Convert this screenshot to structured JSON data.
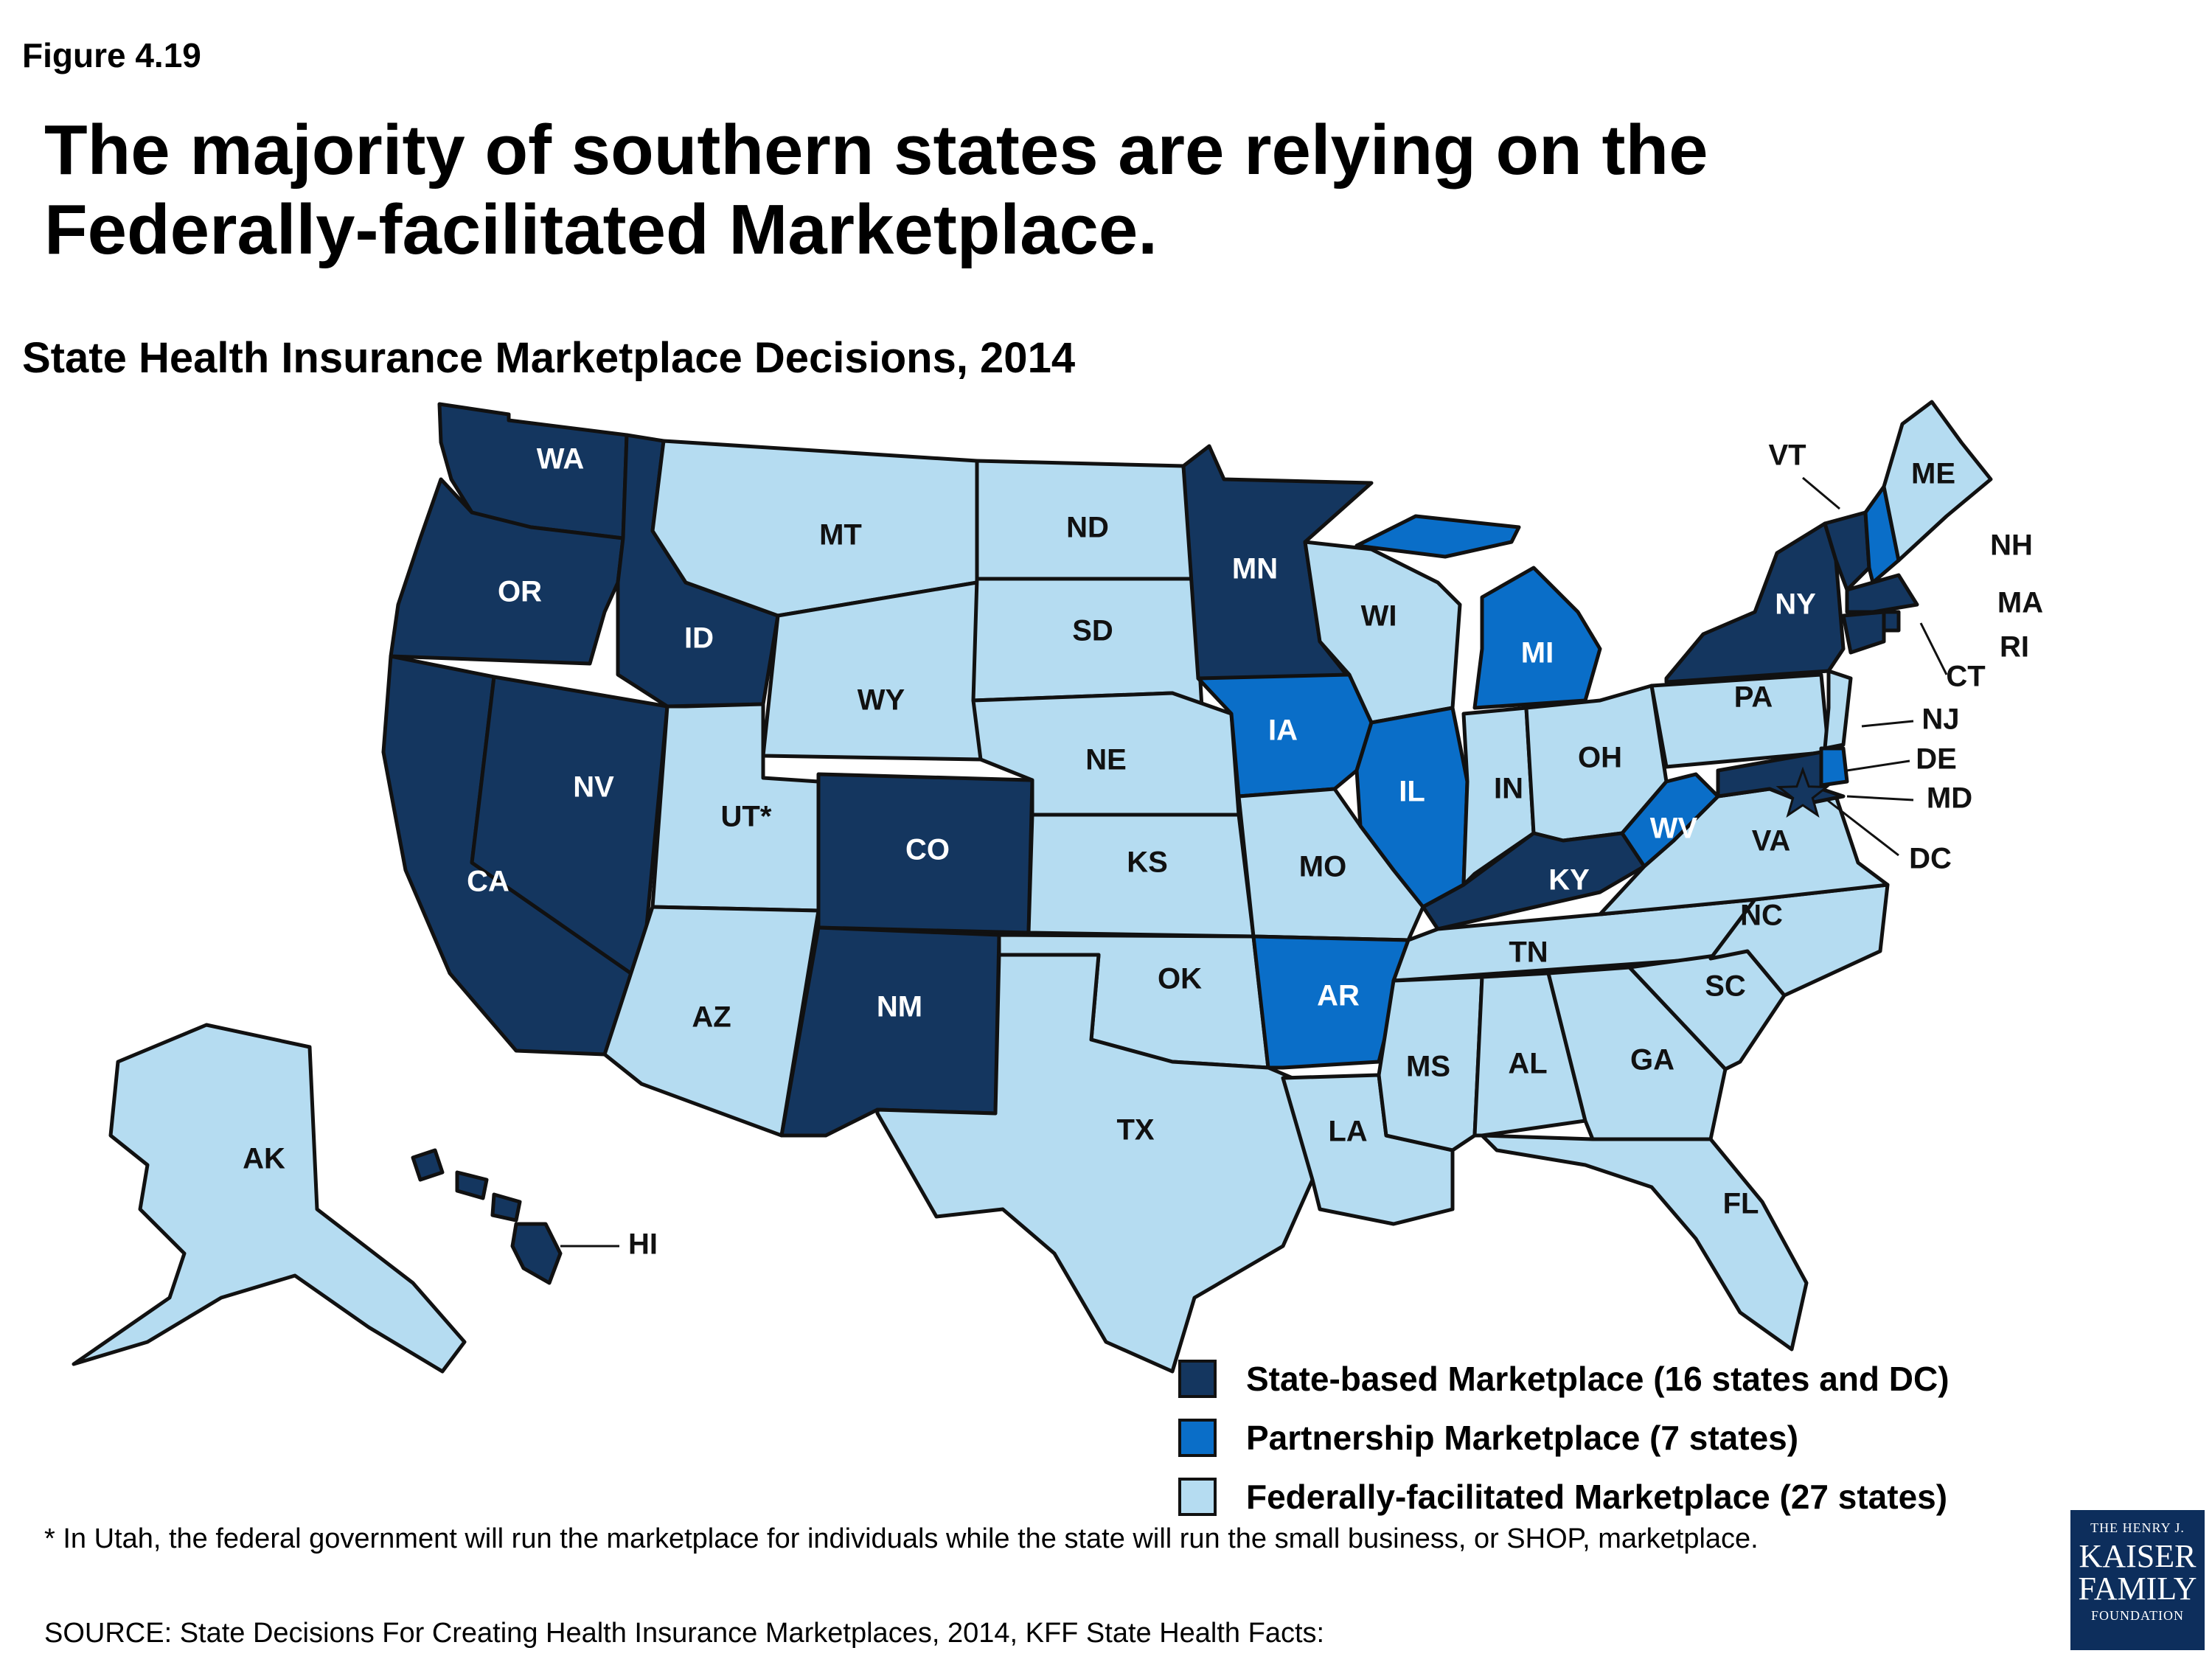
{
  "figure_label": "Figure 4.19",
  "headline": "The majority of southern states are relying on the Federally-facilitated Marketplace.",
  "subtitle": "State Health Insurance Marketplace Decisions, 2014",
  "colors": {
    "state_based": "#14365f",
    "partnership": "#0a6ec8",
    "federal": "#b5dcf1",
    "border": "#111111"
  },
  "legend": [
    {
      "key": "state_based",
      "label": "State-based Marketplace (16 states and DC)"
    },
    {
      "key": "partnership",
      "label": "Partnership Marketplace (7 states)"
    },
    {
      "key": "federal",
      "label": "Federally-facilitated Marketplace (27 states)"
    }
  ],
  "states": {
    "WA": "state_based",
    "OR": "state_based",
    "CA": "state_based",
    "NV": "state_based",
    "ID": "state_based",
    "MT": "federal",
    "WY": "federal",
    "UT*": "federal",
    "AZ": "federal",
    "CO": "state_based",
    "NM": "state_based",
    "ND": "federal",
    "SD": "federal",
    "NE": "federal",
    "KS": "federal",
    "OK": "federal",
    "TX": "federal",
    "MN": "state_based",
    "IA": "partnership",
    "MO": "federal",
    "AR": "partnership",
    "LA": "federal",
    "WI": "federal",
    "IL": "partnership",
    "MI": "partnership",
    "IN": "federal",
    "OH": "federal",
    "KY": "state_based",
    "TN": "federal",
    "MS": "federal",
    "AL": "federal",
    "GA": "federal",
    "FL": "federal",
    "SC": "federal",
    "NC": "federal",
    "VA": "federal",
    "WV": "partnership",
    "PA": "federal",
    "NY": "state_based",
    "VT": "state_based",
    "NH": "partnership",
    "ME": "federal",
    "MA": "state_based",
    "RI": "state_based",
    "CT": "state_based",
    "NJ": "federal",
    "DE": "partnership",
    "MD": "state_based",
    "DC": "state_based",
    "AK": "federal",
    "HI": "state_based"
  },
  "footnote": "* In Utah, the federal government will run the marketplace for individuals while the state will run the small business, or SHOP, marketplace.",
  "source": "SOURCE: State Decisions For Creating Health Insurance Marketplaces, 2014, KFF State Health Facts:",
  "logo": {
    "line1": "THE HENRY J.",
    "line2": "KAISER",
    "line3": "FAMILY",
    "line4": "FOUNDATION"
  }
}
